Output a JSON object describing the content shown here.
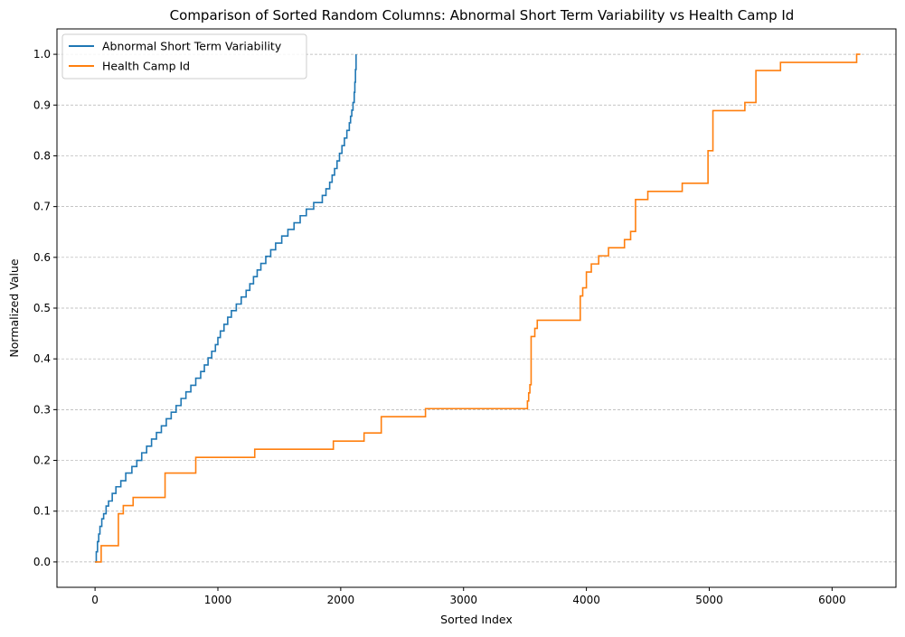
{
  "chart_data": {
    "type": "line",
    "title": "Comparison of Sorted Random Columns: Abnormal Short Term Variability vs Health Camp Id",
    "xlabel": "Sorted Index",
    "ylabel": "Normalized Value",
    "xlim": [
      -310,
      6520
    ],
    "ylim": [
      -0.05,
      1.05
    ],
    "xticks": [
      0,
      1000,
      2000,
      3000,
      4000,
      5000,
      6000
    ],
    "yticks": [
      0.0,
      0.1,
      0.2,
      0.3,
      0.4,
      0.5,
      0.6,
      0.7,
      0.8,
      0.9,
      1.0
    ],
    "grid": "y-dashed",
    "legend_position": "top-left",
    "series": [
      {
        "name": "Abnormal Short Term Variability",
        "color": "#1f77b4",
        "step": true,
        "x": [
          0,
          10,
          20,
          30,
          40,
          55,
          70,
          90,
          110,
          140,
          170,
          210,
          250,
          300,
          340,
          380,
          420,
          460,
          500,
          540,
          580,
          620,
          660,
          700,
          740,
          780,
          820,
          860,
          890,
          920,
          950,
          980,
          1000,
          1020,
          1050,
          1080,
          1110,
          1150,
          1190,
          1230,
          1260,
          1290,
          1320,
          1350,
          1390,
          1430,
          1470,
          1520,
          1570,
          1620,
          1670,
          1720,
          1780,
          1850,
          1880,
          1910,
          1930,
          1950,
          1970,
          1990,
          2010,
          2030,
          2050,
          2070,
          2080,
          2090,
          2100,
          2110,
          2115,
          2120,
          2125
        ],
        "y": [
          0.0,
          0.02,
          0.04,
          0.055,
          0.07,
          0.085,
          0.095,
          0.11,
          0.12,
          0.135,
          0.148,
          0.16,
          0.175,
          0.188,
          0.2,
          0.215,
          0.228,
          0.242,
          0.255,
          0.268,
          0.282,
          0.295,
          0.308,
          0.322,
          0.335,
          0.348,
          0.362,
          0.375,
          0.388,
          0.402,
          0.415,
          0.428,
          0.442,
          0.455,
          0.468,
          0.482,
          0.495,
          0.508,
          0.522,
          0.535,
          0.548,
          0.562,
          0.575,
          0.588,
          0.602,
          0.615,
          0.628,
          0.642,
          0.655,
          0.668,
          0.682,
          0.695,
          0.708,
          0.722,
          0.735,
          0.748,
          0.762,
          0.775,
          0.79,
          0.805,
          0.82,
          0.835,
          0.85,
          0.865,
          0.878,
          0.89,
          0.905,
          0.925,
          0.945,
          0.97,
          1.0
        ]
      },
      {
        "name": "Health Camp Id",
        "color": "#ff7f0e",
        "step": true,
        "x": [
          0,
          50,
          190,
          230,
          310,
          570,
          820,
          1300,
          1940,
          2190,
          2330,
          2690,
          3520,
          3530,
          3540,
          3550,
          3580,
          3600,
          3950,
          3970,
          4000,
          4040,
          4100,
          4180,
          4310,
          4360,
          4400,
          4500,
          4780,
          4990,
          5030,
          5290,
          5380,
          5580,
          6200,
          6230
        ],
        "y": [
          0.0,
          0.032,
          0.095,
          0.111,
          0.127,
          0.175,
          0.206,
          0.222,
          0.238,
          0.254,
          0.286,
          0.302,
          0.317,
          0.333,
          0.349,
          0.444,
          0.46,
          0.476,
          0.524,
          0.54,
          0.571,
          0.587,
          0.603,
          0.619,
          0.635,
          0.651,
          0.714,
          0.73,
          0.746,
          0.81,
          0.889,
          0.905,
          0.968,
          0.984,
          1.0,
          1.0
        ]
      }
    ]
  }
}
